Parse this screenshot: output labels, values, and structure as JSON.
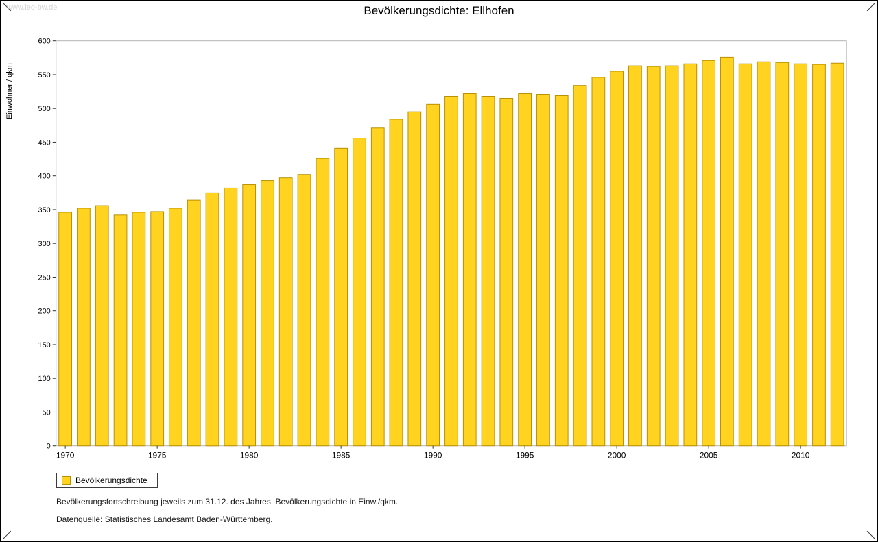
{
  "frame": {
    "watermark": "www.leo-bw.de"
  },
  "chart_data": {
    "type": "bar",
    "title": "Bevölkerungsdichte: Ellhofen",
    "ylabel": "Einwohner / qkm",
    "xlabel": "",
    "ylim": [
      0,
      600
    ],
    "ytick_step": 50,
    "grid": false,
    "legend_position": "bottom-left",
    "categories": [
      1970,
      1971,
      1972,
      1973,
      1974,
      1975,
      1976,
      1977,
      1978,
      1979,
      1980,
      1981,
      1982,
      1983,
      1984,
      1985,
      1986,
      1987,
      1988,
      1989,
      1990,
      1991,
      1992,
      1993,
      1994,
      1995,
      1996,
      1997,
      1998,
      1999,
      2000,
      2001,
      2002,
      2003,
      2004,
      2005,
      2006,
      2007,
      2008,
      2009,
      2010,
      2011,
      2012
    ],
    "values": [
      346,
      352,
      356,
      342,
      346,
      347,
      352,
      364,
      375,
      382,
      387,
      393,
      397,
      402,
      426,
      441,
      456,
      471,
      484,
      495,
      506,
      518,
      522,
      518,
      515,
      522,
      521,
      519,
      534,
      546,
      555,
      563,
      562,
      563,
      566,
      571,
      576,
      566,
      569,
      568,
      566,
      565,
      567
    ],
    "xtick_labels": [
      1970,
      1975,
      1980,
      1985,
      1990,
      1995,
      2000,
      2005,
      2010
    ],
    "legend": [
      {
        "label": "Bevölkerungsdichte",
        "color": "#FFD320"
      }
    ],
    "colors": {
      "bar_fill": "#FFD320",
      "bar_stroke": "#B99000",
      "plot_border": "#b3b3b3",
      "axis": "#333333"
    }
  },
  "footnotes": {
    "line1": "Bevölkerungsfortschreibung jeweils zum 31.12. des Jahres. Bevölkerungsdichte in Einw./qkm.",
    "line2": "Datenquelle: Statistisches Landesamt Baden-Württemberg."
  }
}
